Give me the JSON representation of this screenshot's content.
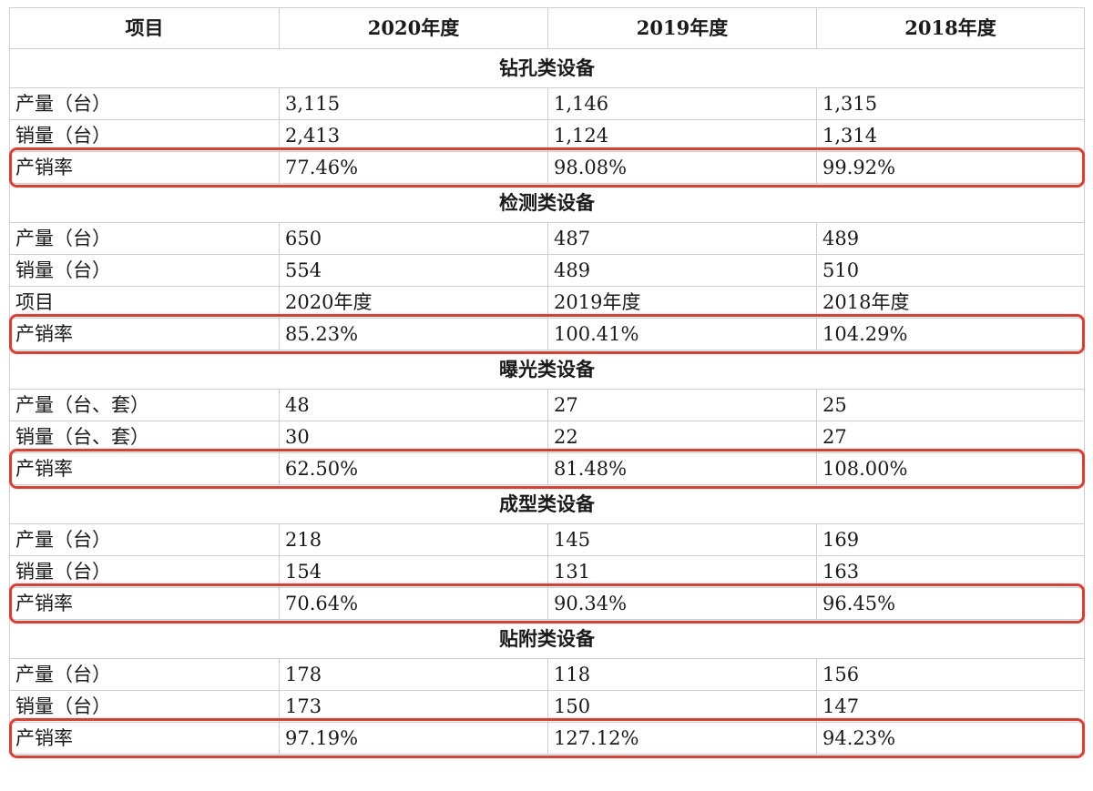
{
  "table": {
    "headers": [
      "项目",
      "2020年度",
      "2019年度",
      "2018年度"
    ],
    "sections": [
      {
        "title": "钻孔类设备",
        "rows": [
          {
            "label": "产量（台）",
            "v": [
              "3,115",
              "1,146",
              "1,315"
            ]
          },
          {
            "label": "销量（台）",
            "v": [
              "2,413",
              "1,124",
              "1,314"
            ]
          },
          {
            "label": "产销率",
            "v": [
              "77.46%",
              "98.08%",
              "99.92%"
            ]
          }
        ]
      },
      {
        "title": "检测类设备",
        "rows": [
          {
            "label": "产量（台）",
            "v": [
              "650",
              "487",
              "489"
            ]
          },
          {
            "label": "销量（台）",
            "v": [
              "554",
              "489",
              "510"
            ]
          },
          {
            "label": "项目",
            "v": [
              "2020年度",
              "2019年度",
              "2018年度"
            ]
          },
          {
            "label": "产销率",
            "v": [
              "85.23%",
              "100.41%",
              "104.29%"
            ]
          }
        ]
      },
      {
        "title": "曝光类设备",
        "rows": [
          {
            "label": "产量（台、套）",
            "v": [
              "48",
              "27",
              "25"
            ]
          },
          {
            "label": "销量（台、套）",
            "v": [
              "30",
              "22",
              "27"
            ]
          },
          {
            "label": "产销率",
            "v": [
              "62.50%",
              "81.48%",
              "108.00%"
            ]
          }
        ]
      },
      {
        "title": "成型类设备",
        "rows": [
          {
            "label": "产量（台）",
            "v": [
              "218",
              "145",
              "169"
            ]
          },
          {
            "label": "销量（台）",
            "v": [
              "154",
              "131",
              "163"
            ]
          },
          {
            "label": "产销率",
            "v": [
              "70.64%",
              "90.34%",
              "96.45%"
            ]
          }
        ]
      },
      {
        "title": "贴附类设备",
        "rows": [
          {
            "label": "产量（台）",
            "v": [
              "178",
              "118",
              "156"
            ]
          },
          {
            "label": "销量（台）",
            "v": [
              "173",
              "150",
              "147"
            ]
          },
          {
            "label": "产销率",
            "v": [
              "97.19%",
              "127.12%",
              "94.23%"
            ]
          }
        ]
      }
    ]
  },
  "highlight": {
    "color": "#e8392b",
    "row_label": "产销率"
  }
}
